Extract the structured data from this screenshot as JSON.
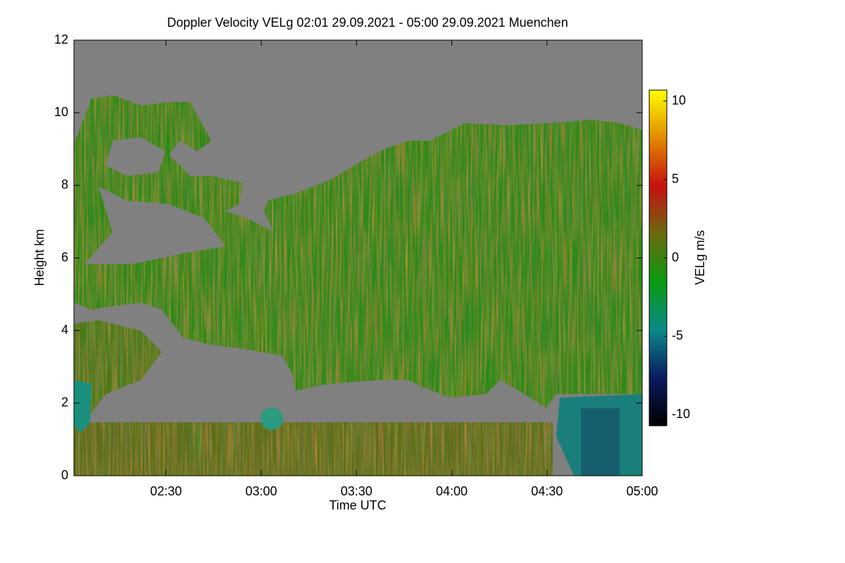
{
  "chart_data": {
    "type": "heatmap",
    "title": "Doppler Velocity VELg   02:01 29.09.2021 - 05:00 29.09.2021 Muenchen",
    "x_label": "Time UTC",
    "y_label": "Height km",
    "colorbar_label": "VELg m/s",
    "xlim": [
      121,
      300
    ],
    "xticks": [
      {
        "value": 150,
        "label": "02:30"
      },
      {
        "value": 180,
        "label": "03:00"
      },
      {
        "value": 210,
        "label": "03:30"
      },
      {
        "value": 240,
        "label": "04:00"
      },
      {
        "value": 270,
        "label": "04:30"
      },
      {
        "value": 300,
        "label": "05:00"
      }
    ],
    "ylim": [
      0,
      12
    ],
    "yticks": [
      0,
      2,
      4,
      6,
      8,
      10,
      12
    ],
    "clim": [
      -10.7,
      10.7
    ],
    "cticks": [
      -10,
      -5,
      0,
      5,
      10
    ],
    "colorscale": [
      "#000000",
      "#0a1a60",
      "#0a8a8a",
      "#0a9a10",
      "#6a6a10",
      "#c81010",
      "#e08a00",
      "#ffff00"
    ],
    "background_color": "#808080"
  }
}
